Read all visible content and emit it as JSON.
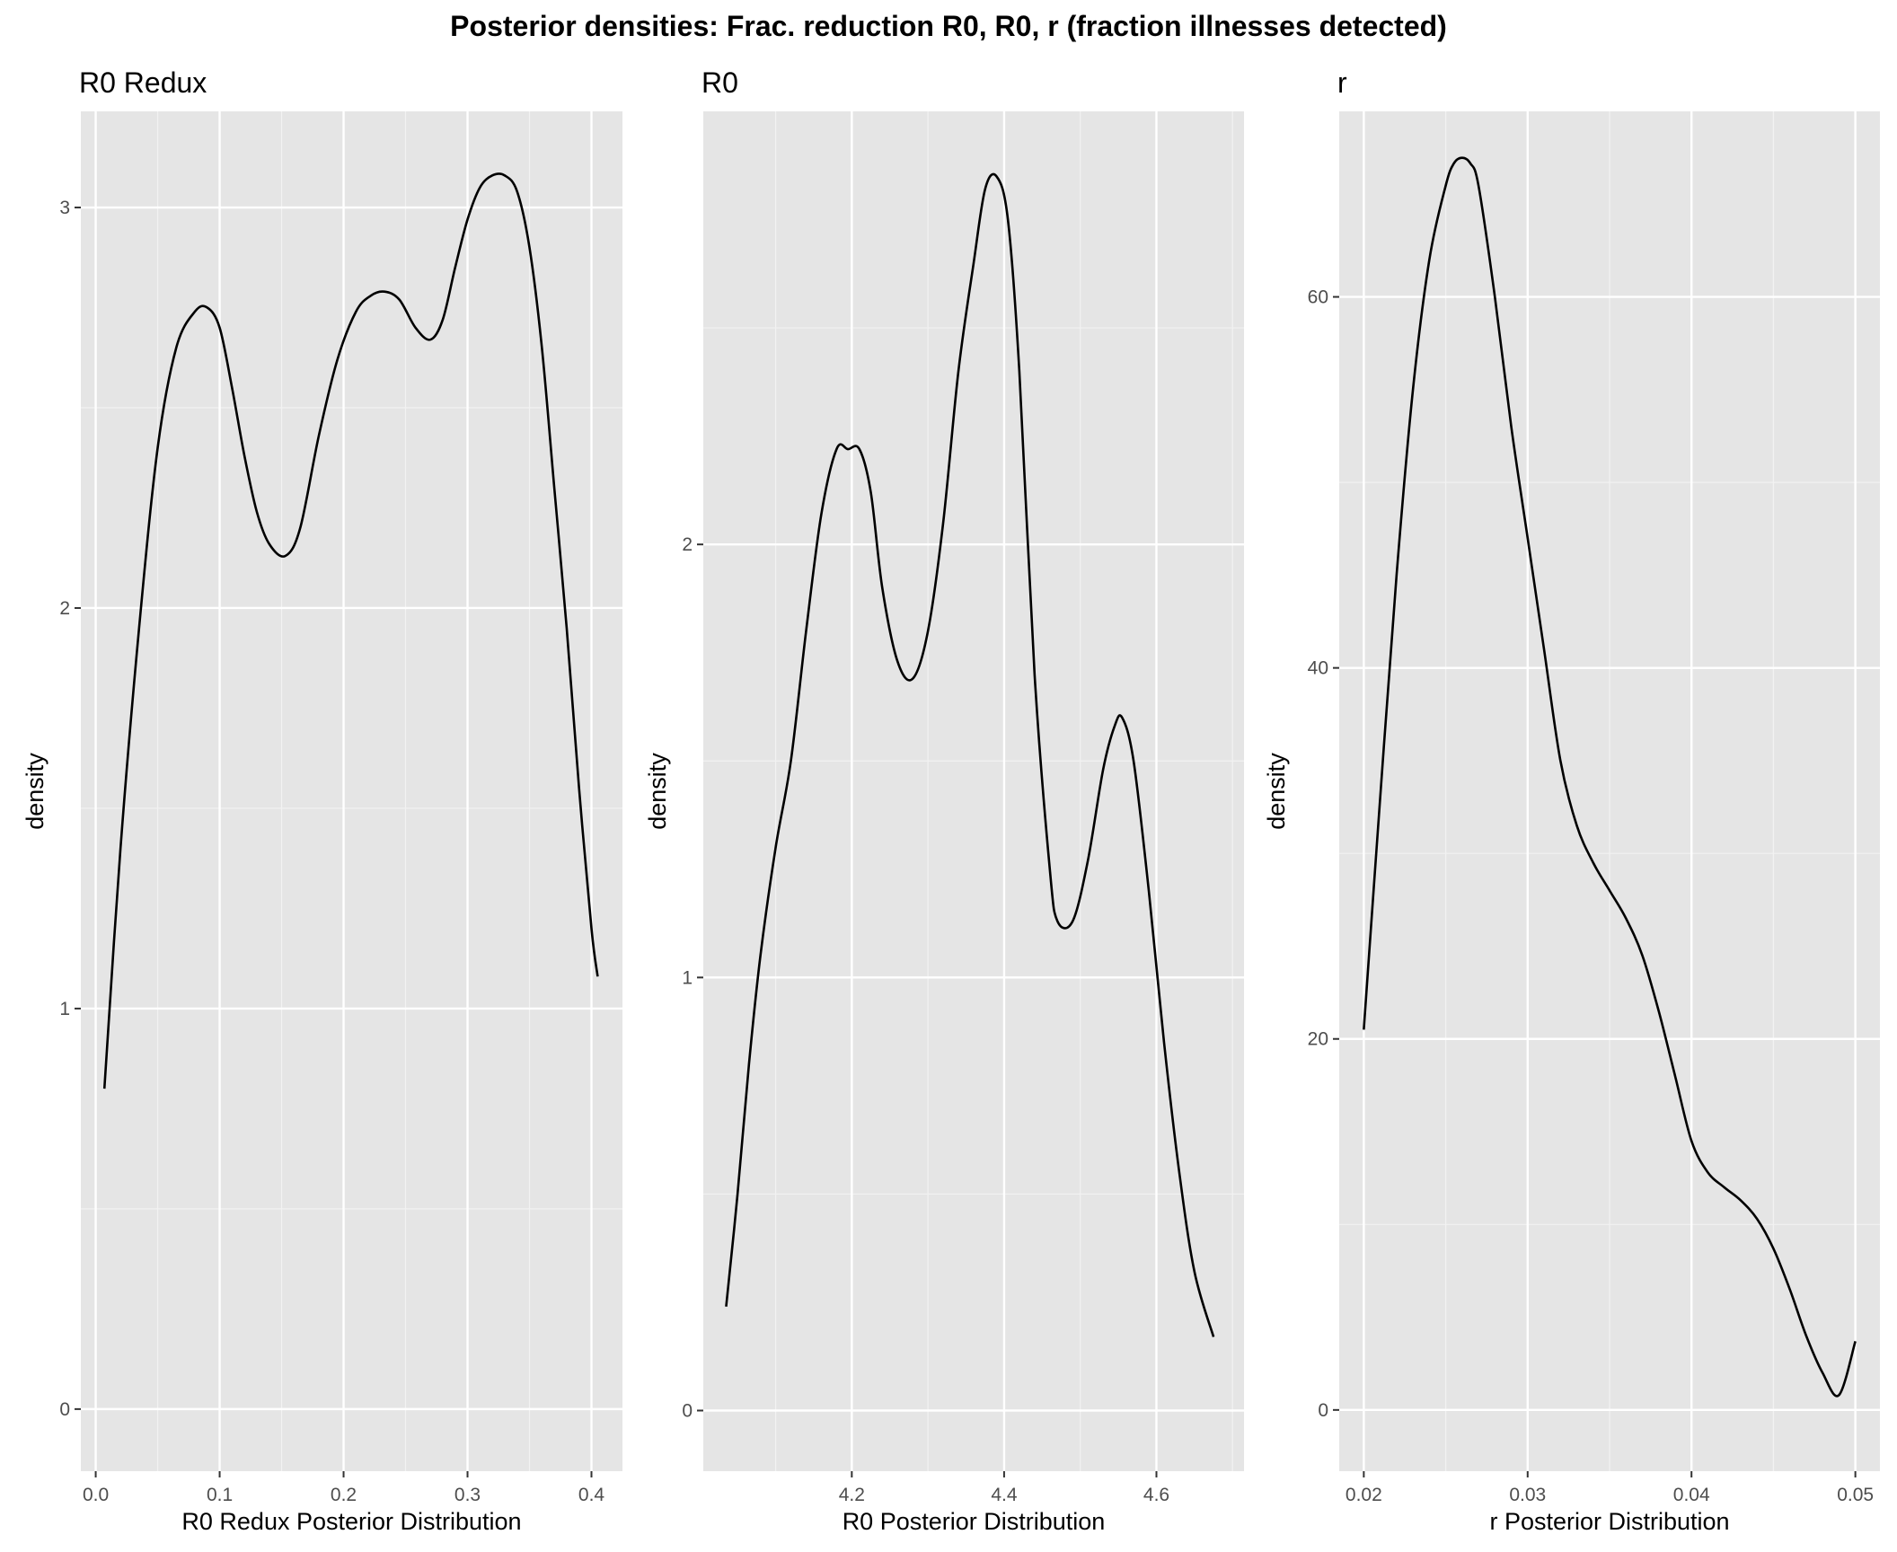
{
  "title": "Posterior densities: Frac.  reduction R0, R0, r (fraction illnesses detected)",
  "chart_data": [
    {
      "type": "line",
      "title": "R0 Redux",
      "xlabel": "R0 Redux Posterior Distribution",
      "ylabel": "density",
      "xlim": [
        -0.012,
        0.425
      ],
      "ylim": [
        -0.155,
        3.24
      ],
      "x_ticks": [
        0.0,
        0.1,
        0.2,
        0.3,
        0.4
      ],
      "x_tick_labels": [
        "0.0",
        "0.1",
        "0.2",
        "0.3",
        "0.4"
      ],
      "y_ticks": [
        0,
        1,
        2,
        3
      ],
      "y_tick_labels": [
        "0",
        "1",
        "2",
        "3"
      ],
      "grid": true,
      "series": [
        {
          "x": [
            0.007,
            0.02,
            0.035,
            0.05,
            0.065,
            0.08,
            0.09,
            0.1,
            0.11,
            0.12,
            0.13,
            0.14,
            0.153,
            0.165,
            0.18,
            0.195,
            0.21,
            0.222,
            0.233,
            0.245,
            0.258,
            0.27,
            0.28,
            0.29,
            0.3,
            0.31,
            0.32,
            0.33,
            0.34,
            0.35,
            0.36,
            0.37,
            0.38,
            0.39,
            0.4,
            0.405
          ],
          "y": [
            0.8,
            1.4,
            1.95,
            2.4,
            2.65,
            2.74,
            2.75,
            2.7,
            2.55,
            2.38,
            2.24,
            2.16,
            2.13,
            2.2,
            2.43,
            2.62,
            2.74,
            2.78,
            2.79,
            2.77,
            2.7,
            2.67,
            2.72,
            2.85,
            2.97,
            3.05,
            3.08,
            3.08,
            3.04,
            2.9,
            2.65,
            2.3,
            1.95,
            1.55,
            1.2,
            1.08
          ]
        }
      ]
    },
    {
      "type": "line",
      "title": "R0",
      "xlabel": "R0 Posterior Distribution",
      "ylabel": "density",
      "xlim": [
        4.005,
        4.715
      ],
      "ylim": [
        -0.14,
        3.0
      ],
      "x_ticks": [
        4.2,
        4.4,
        4.6
      ],
      "x_tick_labels": [
        "4.2",
        "4.4",
        "4.6"
      ],
      "y_ticks": [
        0,
        1,
        2
      ],
      "y_tick_labels": [
        "0",
        "1",
        "2"
      ],
      "grid": true,
      "series": [
        {
          "x": [
            4.035,
            4.05,
            4.065,
            4.08,
            4.1,
            4.12,
            4.14,
            4.16,
            4.18,
            4.195,
            4.21,
            4.225,
            4.24,
            4.26,
            4.28,
            4.3,
            4.32,
            4.34,
            4.36,
            4.375,
            4.39,
            4.405,
            4.42,
            4.44,
            4.46,
            4.47,
            4.49,
            4.51,
            4.53,
            4.545,
            4.555,
            4.57,
            4.59,
            4.61,
            4.63,
            4.65,
            4.675
          ],
          "y": [
            0.24,
            0.5,
            0.8,
            1.05,
            1.3,
            1.5,
            1.8,
            2.07,
            2.22,
            2.22,
            2.22,
            2.12,
            1.9,
            1.73,
            1.69,
            1.8,
            2.05,
            2.4,
            2.65,
            2.82,
            2.85,
            2.75,
            2.4,
            1.7,
            1.25,
            1.13,
            1.13,
            1.27,
            1.48,
            1.58,
            1.6,
            1.5,
            1.2,
            0.85,
            0.55,
            0.32,
            0.17
          ]
        }
      ]
    },
    {
      "type": "line",
      "title": "r",
      "xlabel": "r Posterior Distribution",
      "ylabel": "density",
      "xlim": [
        0.0185,
        0.0515
      ],
      "ylim": [
        -3.3,
        70.0
      ],
      "x_ticks": [
        0.02,
        0.03,
        0.04,
        0.05
      ],
      "x_tick_labels": [
        "0.02",
        "0.03",
        "0.04",
        "0.05"
      ],
      "y_ticks": [
        0,
        20,
        40,
        60
      ],
      "y_tick_labels": [
        "0",
        "20",
        "40",
        "60"
      ],
      "grid": true,
      "series": [
        {
          "x": [
            0.02,
            0.021,
            0.022,
            0.023,
            0.024,
            0.025,
            0.0255,
            0.026,
            0.0265,
            0.027,
            0.028,
            0.029,
            0.03,
            0.031,
            0.032,
            0.033,
            0.034,
            0.035,
            0.036,
            0.037,
            0.038,
            0.039,
            0.04,
            0.041,
            0.042,
            0.043,
            0.044,
            0.045,
            0.046,
            0.047,
            0.048,
            0.049,
            0.05
          ],
          "y": [
            20.5,
            33,
            45,
            55,
            62,
            66,
            67.2,
            67.5,
            67.2,
            66,
            60,
            53,
            47,
            41,
            35,
            31.5,
            29.5,
            28,
            26.5,
            24.5,
            21.5,
            18,
            14.5,
            12.8,
            12,
            11.3,
            10.3,
            8.7,
            6.5,
            4,
            2,
            0.8,
            3.7
          ]
        }
      ]
    }
  ]
}
